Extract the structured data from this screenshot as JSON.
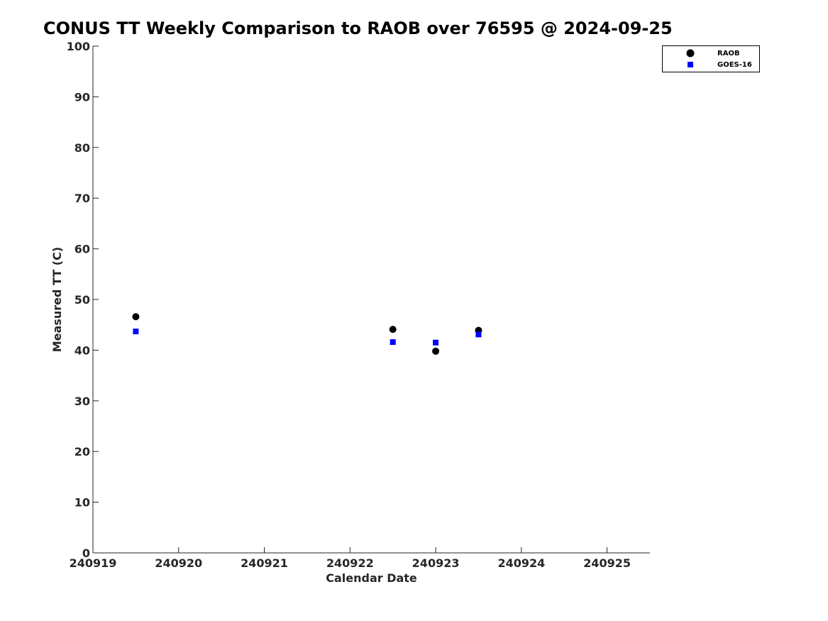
{
  "chart_data": {
    "type": "scatter",
    "title": "CONUS TT Weekly Comparison to RAOB over 76595 @ 2024-09-25",
    "xlabel": "Calendar Date",
    "ylabel": "Measured TT (C)",
    "xlim": [
      "240919",
      "240925 12:00"
    ],
    "ylim": [
      0,
      100
    ],
    "x_ticks": [
      "240919",
      "240920",
      "240921",
      "240922",
      "240923",
      "240924",
      "240925"
    ],
    "y_ticks": [
      0,
      10,
      20,
      30,
      40,
      50,
      60,
      70,
      80,
      90,
      100
    ],
    "grid": false,
    "legend_position": "top-right",
    "series": [
      {
        "name": "RAOB",
        "marker": "circle",
        "color": "#000000",
        "points": [
          {
            "x": "240919 12:00",
            "y": 46.6
          },
          {
            "x": "240922 12:00",
            "y": 44.1
          },
          {
            "x": "240923 00:00",
            "y": 39.8
          },
          {
            "x": "240923 12:00",
            "y": 43.9
          }
        ]
      },
      {
        "name": "GOES-16",
        "marker": "square",
        "color": "#0000ff",
        "points": [
          {
            "x": "240919 12:00",
            "y": 43.7
          },
          {
            "x": "240922 12:00",
            "y": 41.6
          },
          {
            "x": "240923 00:00",
            "y": 41.5
          },
          {
            "x": "240923 12:00",
            "y": 43.1
          }
        ]
      }
    ]
  }
}
